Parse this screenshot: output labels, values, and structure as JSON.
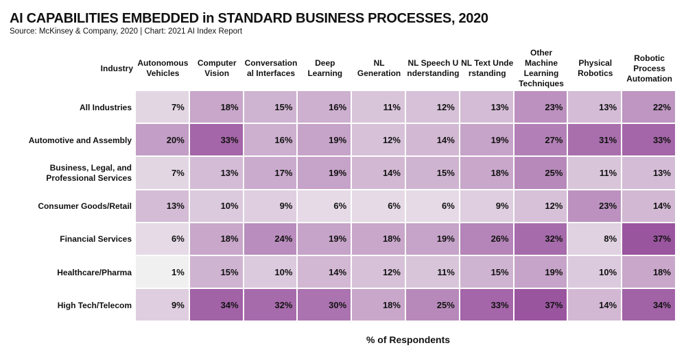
{
  "chart_data": {
    "type": "heatmap",
    "title": "AI CAPABILITIES EMBEDDED in STANDARD BUSINESS PROCESSES, 2020",
    "subtitle": "Source: McKinsey & Company, 2020 | Chart: 2021 AI Index Report",
    "row_header": "Industry",
    "xlabel": "% of Respondents",
    "columns": [
      "Autonomous Vehicles",
      "Computer Vision",
      "Conversation al Interfaces",
      "Deep Learning",
      "NL Generation",
      "NL Speech U nderstanding",
      "NL Text Unde rstanding",
      "Other Machine Learning Techniques",
      "Physical Robotics",
      "Robotic Process Automation"
    ],
    "rows": [
      "All Industries",
      "Automotive and Assembly",
      "Business, Legal, and Professional Services",
      "Consumer Goods/Retail",
      "Financial Services",
      "Healthcare/Pharma",
      "High Tech/Telecom"
    ],
    "values": [
      [
        7,
        18,
        15,
        16,
        11,
        12,
        13,
        23,
        13,
        22
      ],
      [
        20,
        33,
        16,
        19,
        12,
        14,
        19,
        27,
        31,
        33
      ],
      [
        7,
        13,
        17,
        19,
        14,
        15,
        18,
        25,
        11,
        13
      ],
      [
        13,
        10,
        9,
        6,
        6,
        6,
        9,
        12,
        23,
        14
      ],
      [
        6,
        18,
        24,
        19,
        18,
        19,
        26,
        32,
        8,
        37
      ],
      [
        1,
        15,
        10,
        14,
        12,
        11,
        15,
        19,
        10,
        18
      ],
      [
        9,
        34,
        32,
        30,
        18,
        25,
        33,
        37,
        14,
        34
      ]
    ],
    "unit": "%",
    "color_scale": {
      "low": "#f1f0f1",
      "high": "#9a559f",
      "range": [
        1,
        37
      ]
    }
  }
}
